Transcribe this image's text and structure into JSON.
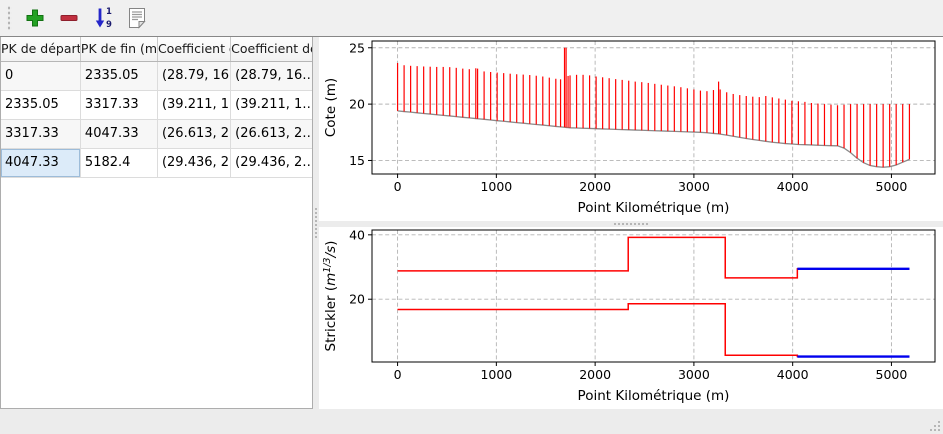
{
  "toolbar": {
    "buttons": [
      {
        "name": "add-row",
        "icon": "plus-icon",
        "color": "#23a123"
      },
      {
        "name": "delete-row",
        "icon": "minus-icon",
        "color": "#c12f3f"
      },
      {
        "name": "sort-rows",
        "icon": "sort-numeric-icon",
        "color": "#2526c9",
        "digits": [
          "1",
          "9"
        ]
      },
      {
        "name": "paste",
        "icon": "document-icon"
      }
    ]
  },
  "table": {
    "headers": [
      "PK de départ (m)",
      "PK de fin (m)",
      "Coefficient de départ",
      "Coefficient de fin"
    ],
    "rows": [
      [
        "0",
        "2335.05",
        "(28.79, 16…",
        "(28.79, 16…"
      ],
      [
        "2335.05",
        "3317.33",
        "(39.211, 1…",
        "(39.211, 1…"
      ],
      [
        "3317.33",
        "4047.33",
        "(26.613, 2…",
        "(26.613, 2…"
      ],
      [
        "4047.33",
        "5182.4",
        "(29.436, 2…",
        "(29.436, 2…"
      ]
    ],
    "selected_cell": {
      "row": 3,
      "col": 0
    },
    "selection_color": "#dcebf9"
  },
  "chart_data": {
    "cote": {
      "type": "line",
      "xlabel": "Point Kilométrique (m)",
      "ylabel": [
        {
          "t": "Cote (m)"
        }
      ],
      "xlim": [
        -259,
        5441
      ],
      "ylim": [
        13.8,
        25.6
      ],
      "xticks": [
        0,
        1000,
        2000,
        3000,
        4000,
        5000
      ],
      "yticks": [
        15,
        20,
        25
      ],
      "grid": true,
      "profile": {
        "ground_color": "#8a8a8a",
        "line_color": "#ff0000",
        "x": [
          0,
          66,
          132,
          198,
          264,
          330,
          396,
          462,
          528,
          594,
          660,
          726,
          792,
          810,
          876,
          942,
          1008,
          1074,
          1140,
          1206,
          1272,
          1338,
          1404,
          1470,
          1536,
          1602,
          1650,
          1690,
          1706,
          1726,
          1746,
          1812,
          1878,
          1944,
          2010,
          2076,
          2142,
          2208,
          2274,
          2340,
          2406,
          2472,
          2538,
          2604,
          2670,
          2736,
          2802,
          2868,
          2934,
          3000,
          3066,
          3132,
          3198,
          3250,
          3266,
          3332,
          3398,
          3464,
          3530,
          3596,
          3662,
          3728,
          3794,
          3860,
          3926,
          3992,
          4058,
          4124,
          4190,
          4256,
          4322,
          4388,
          4454,
          4520,
          4586,
          4652,
          4718,
          4784,
          4850,
          4916,
          4982,
          5048,
          5114,
          5182
        ],
        "z_bottom": [
          19.4,
          19.34,
          19.29,
          19.23,
          19.17,
          19.12,
          19.06,
          19.0,
          18.95,
          18.89,
          18.83,
          18.78,
          18.72,
          18.7,
          18.65,
          18.59,
          18.53,
          18.48,
          18.42,
          18.36,
          18.31,
          18.25,
          18.19,
          18.14,
          18.08,
          18.02,
          17.98,
          17.95,
          17.93,
          17.92,
          17.9,
          17.88,
          17.86,
          17.84,
          17.82,
          17.8,
          17.78,
          17.76,
          17.74,
          17.72,
          17.7,
          17.68,
          17.66,
          17.64,
          17.62,
          17.6,
          17.58,
          17.56,
          17.54,
          17.52,
          17.5,
          17.46,
          17.4,
          17.36,
          17.34,
          17.25,
          17.15,
          17.05,
          16.95,
          16.86,
          16.78,
          16.7,
          16.62,
          16.56,
          16.5,
          16.46,
          16.42,
          16.4,
          16.38,
          16.35,
          16.33,
          16.31,
          16.3,
          16.1,
          15.7,
          15.2,
          14.8,
          14.55,
          14.45,
          14.4,
          14.45,
          14.6,
          14.85,
          15.1
        ],
        "z_top": [
          23.65,
          23.45,
          23.4,
          23.37,
          23.34,
          23.32,
          23.3,
          23.3,
          23.28,
          23.22,
          23.15,
          23.1,
          23.18,
          23.15,
          22.9,
          22.85,
          22.8,
          22.75,
          22.7,
          22.65,
          22.62,
          22.58,
          22.52,
          22.45,
          22.35,
          22.25,
          22.2,
          25.0,
          25.0,
          22.5,
          22.55,
          22.6,
          22.6,
          22.55,
          22.45,
          22.38,
          22.3,
          22.22,
          22.15,
          22.08,
          22.0,
          21.95,
          21.88,
          21.8,
          21.72,
          21.65,
          21.58,
          21.5,
          21.4,
          21.3,
          21.2,
          21.15,
          21.25,
          22.0,
          21.3,
          21.05,
          20.9,
          20.8,
          20.72,
          20.66,
          20.62,
          20.72,
          20.6,
          20.5,
          20.4,
          20.3,
          20.25,
          20.2,
          20.1,
          20.05,
          20.0,
          19.95,
          19.9,
          19.95,
          20.0,
          20.0,
          20.0,
          20.0,
          20.0,
          20.0,
          20.0,
          20.0,
          20.0,
          20.0
        ]
      }
    },
    "strickler": {
      "type": "line",
      "xlabel": "Point Kilométrique (m)",
      "ylabel": [
        {
          "t": "Strickler ("
        },
        {
          "t": "m",
          "i": 1
        },
        {
          "t": "1/3",
          "i": 1,
          "sup": 1
        },
        {
          "t": "/s",
          "i": 1
        },
        {
          "t": ")"
        }
      ],
      "xlim": [
        -259,
        5441
      ],
      "ylim": [
        0.5,
        41.5
      ],
      "xticks": [
        0,
        1000,
        2000,
        3000,
        4000,
        5000
      ],
      "yticks": [
        20,
        40
      ],
      "grid": true,
      "series": [
        {
          "name": "strickler-minor-bed",
          "color": "#ff0000",
          "w": 1.5,
          "x": [
            0,
            2335.05,
            2335.05,
            3317.33,
            3317.33,
            4047.33,
            4047.33,
            5182.4
          ],
          "y": [
            28.79,
            28.79,
            39.211,
            39.211,
            26.613,
            26.613,
            29.436,
            29.436
          ]
        },
        {
          "name": "strickler-major-bed",
          "color": "#ff0000",
          "w": 1.5,
          "x": [
            0,
            2335.05,
            2335.05,
            3317.33,
            3317.33,
            4047.33,
            4047.33,
            5182.4
          ],
          "y": [
            16.8,
            16.8,
            18.6,
            18.6,
            2.6,
            2.6,
            2.2,
            2.2
          ]
        },
        {
          "name": "selected-zone-minor",
          "color": "#0000ee",
          "w": 2.4,
          "x": [
            4047.33,
            5182.4
          ],
          "y": [
            29.436,
            29.436
          ]
        },
        {
          "name": "selected-zone-major",
          "color": "#0000ee",
          "w": 2.4,
          "x": [
            4047.33,
            5182.4
          ],
          "y": [
            2.2,
            2.2
          ]
        }
      ]
    }
  },
  "status_bar": {
    "grip_icon": "resize-grip-icon"
  }
}
